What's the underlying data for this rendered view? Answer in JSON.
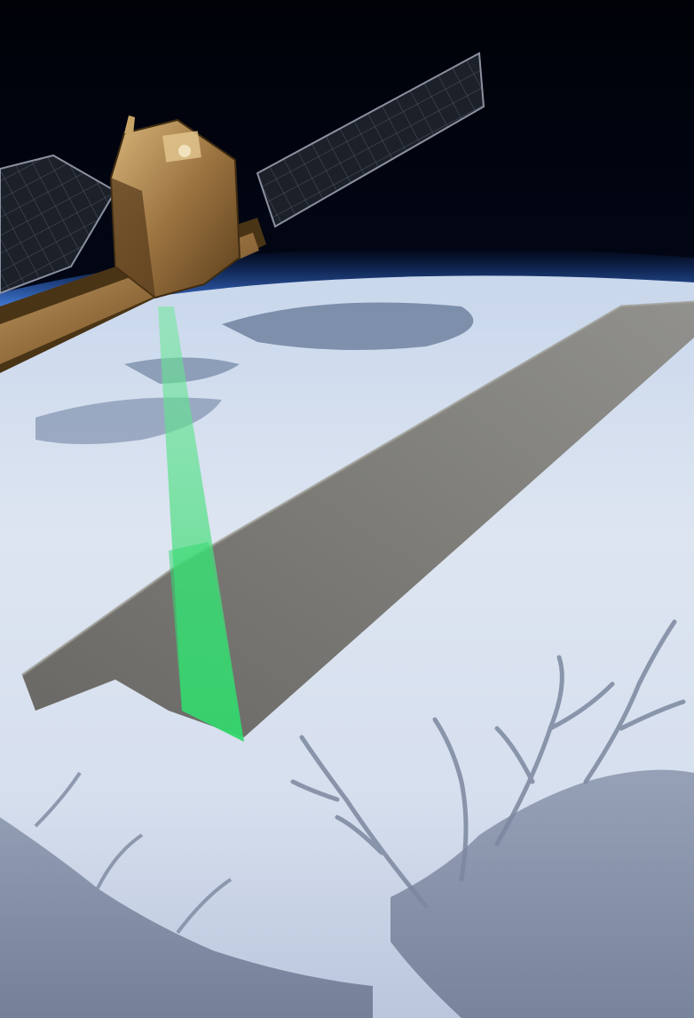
{
  "scene": {
    "subject": "satellite-radar-swath",
    "colors": {
      "space_top": "#000208",
      "space_mid": "#08163a",
      "horizon_glow": "#4f86d8",
      "ice_light": "#dfe7f3",
      "ice_mid": "#b7c7df",
      "ice_shadow": "#8fa2c0",
      "ocean": "#7b879f",
      "cloud_dark": "#3d5274",
      "swath_fill": "#6f6d68",
      "swath_dark": "#57554f",
      "beam_green": "#3ee07a",
      "satellite_gold": "#a8824a",
      "satellite_dark": "#5a3e1e",
      "panel_dark": "#1a1d24",
      "panel_grid": "#6d7280"
    }
  }
}
